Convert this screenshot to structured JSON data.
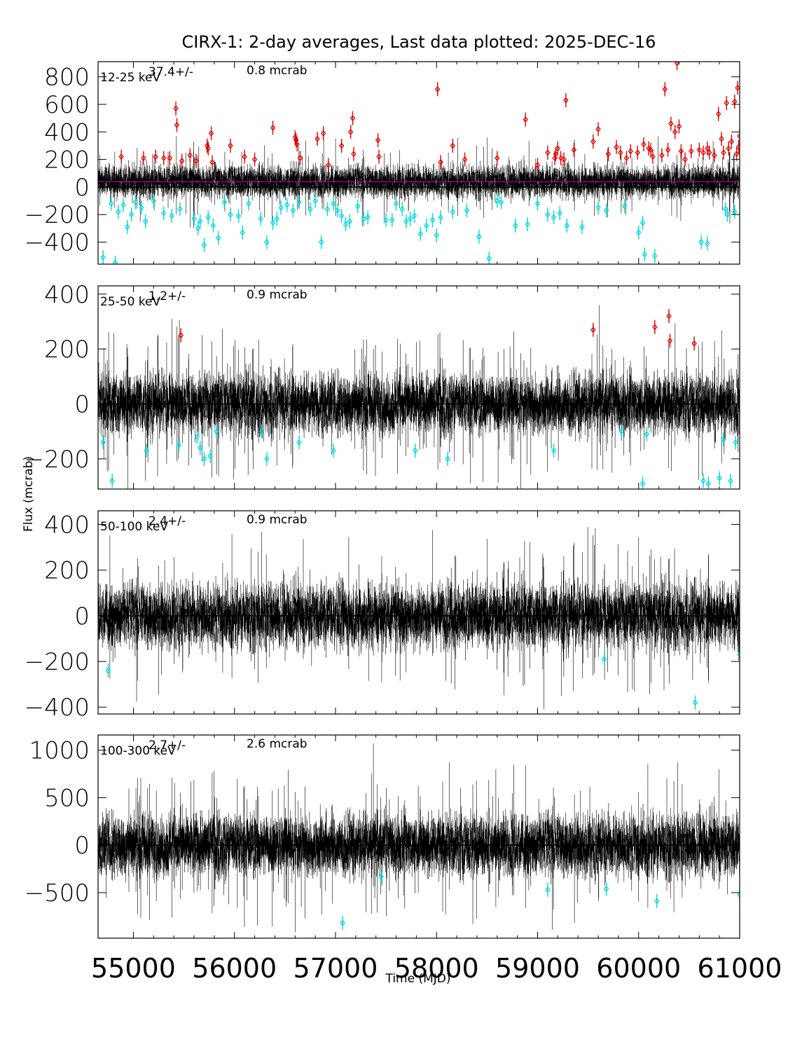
{
  "chart_data": {
    "title": "CIRX-1:  2-day averages,  Last data plotted: 2025-DEC-16",
    "xlabel": "Time (MJD)",
    "ylabel": "Flux (mcrab)",
    "x_ticks": [
      "55000",
      "56000",
      "57000",
      "58000",
      "59000",
      "60000",
      "61000"
    ],
    "xlim": [
      54650,
      61000
    ],
    "type": "scatter",
    "panels": [
      {
        "band": "12-25 keV",
        "mean": "37.4",
        "pm": "+/-",
        "err": "0.8 mcrab",
        "ylim": [
          -560,
          910
        ],
        "y_ticks": [
          "800",
          "600",
          "400",
          "200",
          "0",
          "-200",
          "-400"
        ],
        "y_tick_values": [
          800,
          600,
          400,
          200,
          0,
          -200,
          -400
        ],
        "mean_line": 37.4,
        "noise": {
          "center": 40,
          "spread": 55,
          "err": 45
        },
        "high_points": [
          [
            54880,
            220
          ],
          [
            55100,
            210
          ],
          [
            55220,
            220
          ],
          [
            55300,
            210
          ],
          [
            55360,
            210
          ],
          [
            55420,
            570
          ],
          [
            55430,
            450
          ],
          [
            55480,
            190
          ],
          [
            55560,
            230
          ],
          [
            55620,
            190
          ],
          [
            55730,
            300
          ],
          [
            55740,
            280
          ],
          [
            55770,
            390
          ],
          [
            55780,
            180
          ],
          [
            55960,
            300
          ],
          [
            56100,
            220
          ],
          [
            56200,
            200
          ],
          [
            56380,
            430
          ],
          [
            56600,
            360
          ],
          [
            56610,
            340
          ],
          [
            56620,
            310
          ],
          [
            56650,
            210
          ],
          [
            56820,
            350
          ],
          [
            56880,
            390
          ],
          [
            56930,
            160
          ],
          [
            57060,
            300
          ],
          [
            57150,
            400
          ],
          [
            57170,
            500
          ],
          [
            57180,
            240
          ],
          [
            57420,
            340
          ],
          [
            57430,
            220
          ],
          [
            58010,
            710
          ],
          [
            58040,
            180
          ],
          [
            58160,
            300
          ],
          [
            58280,
            200
          ],
          [
            58600,
            210
          ],
          [
            58880,
            490
          ],
          [
            59000,
            160
          ],
          [
            59100,
            250
          ],
          [
            59170,
            210
          ],
          [
            59180,
            240
          ],
          [
            59200,
            280
          ],
          [
            59230,
            210
          ],
          [
            59260,
            200
          ],
          [
            59280,
            630
          ],
          [
            59360,
            270
          ],
          [
            59550,
            330
          ],
          [
            59600,
            420
          ],
          [
            59700,
            240
          ],
          [
            59780,
            290
          ],
          [
            59820,
            250
          ],
          [
            59880,
            210
          ],
          [
            59920,
            260
          ],
          [
            59990,
            250
          ],
          [
            60050,
            310
          ],
          [
            60100,
            280
          ],
          [
            60120,
            270
          ],
          [
            60140,
            220
          ],
          [
            60230,
            230
          ],
          [
            60260,
            710
          ],
          [
            60290,
            270
          ],
          [
            60320,
            460
          ],
          [
            60360,
            400
          ],
          [
            60380,
            900
          ],
          [
            60400,
            440
          ],
          [
            60420,
            260
          ],
          [
            60460,
            200
          ],
          [
            60520,
            260
          ],
          [
            60600,
            270
          ],
          [
            60640,
            250
          ],
          [
            60680,
            280
          ],
          [
            60700,
            250
          ],
          [
            60750,
            230
          ],
          [
            60790,
            530
          ],
          [
            60820,
            350
          ],
          [
            60840,
            250
          ],
          [
            60870,
            610
          ],
          [
            60890,
            280
          ],
          [
            60920,
            330
          ],
          [
            60950,
            620
          ],
          [
            60970,
            240
          ],
          [
            60980,
            720
          ],
          [
            60990,
            290
          ],
          [
            61000,
            370
          ]
        ],
        "low_points": [
          [
            54700,
            -510
          ],
          [
            54820,
            -550
          ],
          [
            54780,
            -120
          ],
          [
            54850,
            -180
          ],
          [
            54900,
            -130
          ],
          [
            54940,
            -290
          ],
          [
            54980,
            -200
          ],
          [
            55020,
            -110
          ],
          [
            55080,
            -150
          ],
          [
            55120,
            -250
          ],
          [
            55200,
            -100
          ],
          [
            55300,
            -190
          ],
          [
            55380,
            -210
          ],
          [
            55460,
            -160
          ],
          [
            55600,
            -230
          ],
          [
            55640,
            -300
          ],
          [
            55660,
            -250
          ],
          [
            55700,
            -420
          ],
          [
            55740,
            -220
          ],
          [
            55790,
            -280
          ],
          [
            55840,
            -370
          ],
          [
            55900,
            -110
          ],
          [
            55960,
            -200
          ],
          [
            56040,
            -210
          ],
          [
            56080,
            -330
          ],
          [
            56140,
            -120
          ],
          [
            56260,
            -230
          ],
          [
            56320,
            -400
          ],
          [
            56380,
            -260
          ],
          [
            56420,
            -230
          ],
          [
            56460,
            -150
          ],
          [
            56520,
            -130
          ],
          [
            56580,
            -170
          ],
          [
            56640,
            -110
          ],
          [
            56750,
            -160
          ],
          [
            56800,
            -100
          ],
          [
            56860,
            -400
          ],
          [
            56920,
            -160
          ],
          [
            56980,
            -120
          ],
          [
            57020,
            -170
          ],
          [
            57060,
            -210
          ],
          [
            57100,
            -270
          ],
          [
            57140,
            -250
          ],
          [
            57220,
            -140
          ],
          [
            57280,
            -230
          ],
          [
            57320,
            -220
          ],
          [
            57500,
            -240
          ],
          [
            57560,
            -240
          ],
          [
            57600,
            -120
          ],
          [
            57660,
            -160
          ],
          [
            57700,
            -250
          ],
          [
            57740,
            -230
          ],
          [
            57780,
            -210
          ],
          [
            57840,
            -340
          ],
          [
            57900,
            -280
          ],
          [
            57960,
            -240
          ],
          [
            58000,
            -350
          ],
          [
            58040,
            -220
          ],
          [
            58160,
            -180
          ],
          [
            58300,
            -170
          ],
          [
            58420,
            -360
          ],
          [
            58520,
            -520
          ],
          [
            58600,
            -100
          ],
          [
            58640,
            -110
          ],
          [
            58780,
            -280
          ],
          [
            58900,
            -270
          ],
          [
            59000,
            -120
          ],
          [
            59100,
            -200
          ],
          [
            59160,
            -220
          ],
          [
            59220,
            -190
          ],
          [
            59290,
            -280
          ],
          [
            59440,
            -290
          ],
          [
            59600,
            -150
          ],
          [
            59680,
            -170
          ],
          [
            59860,
            -140
          ],
          [
            60000,
            -330
          ],
          [
            60040,
            -260
          ],
          [
            60060,
            -490
          ],
          [
            60160,
            -500
          ],
          [
            60620,
            -400
          ],
          [
            60680,
            -410
          ],
          [
            60860,
            -160
          ],
          [
            60880,
            -200
          ],
          [
            60950,
            -180
          ]
        ]
      },
      {
        "band": "25-50 keV",
        "mean": "1.2",
        "pm": "+/-",
        "err": "0.9 mcrab",
        "ylim": [
          -310,
          430
        ],
        "y_ticks": [
          "400",
          "200",
          "0",
          "-200"
        ],
        "y_tick_values": [
          400,
          200,
          0,
          -200
        ],
        "mean_line": 1.2,
        "noise": {
          "center": 0,
          "spread": 55,
          "err": 40
        },
        "high_points": [
          [
            55470,
            250
          ],
          [
            59550,
            270
          ],
          [
            60160,
            280
          ],
          [
            60300,
            320
          ],
          [
            60310,
            230
          ],
          [
            60550,
            220
          ]
        ],
        "low_points": [
          [
            54700,
            -140
          ],
          [
            54790,
            -280
          ],
          [
            55130,
            -170
          ],
          [
            55450,
            -150
          ],
          [
            55630,
            -120
          ],
          [
            55660,
            -160
          ],
          [
            55700,
            -200
          ],
          [
            55760,
            -190
          ],
          [
            55820,
            -100
          ],
          [
            56270,
            -100
          ],
          [
            56320,
            -200
          ],
          [
            56640,
            -140
          ],
          [
            56980,
            -170
          ],
          [
            57790,
            -170
          ],
          [
            58110,
            -200
          ],
          [
            59160,
            -170
          ],
          [
            59830,
            -100
          ],
          [
            60040,
            -290
          ],
          [
            60080,
            -110
          ],
          [
            60640,
            -280
          ],
          [
            60690,
            -290
          ],
          [
            60800,
            -270
          ],
          [
            60840,
            -130
          ],
          [
            60910,
            -280
          ],
          [
            60960,
            -140
          ]
        ]
      },
      {
        "band": "50-100 keV",
        "mean": "2.4",
        "pm": "+/-",
        "err": "0.9 mcrab",
        "ylim": [
          -430,
          460
        ],
        "y_ticks": [
          "400",
          "200",
          "0",
          "-200",
          "-400"
        ],
        "y_tick_values": [
          400,
          200,
          0,
          -200,
          -400
        ],
        "mean_line": 2.4,
        "noise": {
          "center": 0,
          "spread": 70,
          "err": 50
        },
        "high_points": [],
        "low_points": [
          [
            54750,
            -240
          ],
          [
            59660,
            -190
          ],
          [
            60560,
            -380
          ],
          [
            61000,
            -170
          ]
        ]
      },
      {
        "band": "100-300 keV",
        "mean": "2.7",
        "pm": "+/-",
        "err": "2.6 mcrab",
        "ylim": [
          -980,
          1160
        ],
        "y_ticks": [
          "1000",
          "500",
          "0",
          "-500"
        ],
        "y_tick_values": [
          1000,
          500,
          0,
          -500
        ],
        "mean_line": 2.7,
        "noise": {
          "center": 0,
          "spread": 160,
          "err": 120
        },
        "high_points": [],
        "low_points": [
          [
            57070,
            -820
          ],
          [
            57450,
            -330
          ],
          [
            59100,
            -470
          ],
          [
            59680,
            -460
          ],
          [
            60180,
            -590
          ],
          [
            61000,
            -520
          ]
        ]
      }
    ]
  }
}
